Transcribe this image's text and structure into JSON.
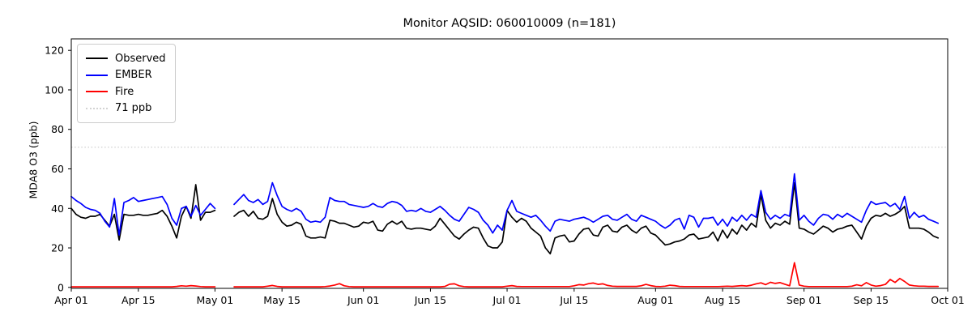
{
  "chart_data": {
    "type": "line",
    "title": "Monitor AQSID: 060010009 (n=181)",
    "xlabel": "",
    "ylabel": "MDA8 O3 (ppb)",
    "legend_position": "upper left",
    "grid": false,
    "background": "#ffffff",
    "ylim": [
      0,
      126
    ],
    "y_ticks": [
      0,
      20,
      40,
      60,
      80,
      100,
      120
    ],
    "x_domain_days": 183,
    "x_ticks": [
      {
        "day": 0,
        "label": "Apr 01"
      },
      {
        "day": 14,
        "label": "Apr 15"
      },
      {
        "day": 30,
        "label": "May 01"
      },
      {
        "day": 44,
        "label": "May 15"
      },
      {
        "day": 61,
        "label": "Jun 01"
      },
      {
        "day": 75,
        "label": "Jun 15"
      },
      {
        "day": 91,
        "label": "Jul 01"
      },
      {
        "day": 105,
        "label": "Jul 15"
      },
      {
        "day": 122,
        "label": "Aug 01"
      },
      {
        "day": 136,
        "label": "Aug 15"
      },
      {
        "day": 153,
        "label": "Sep 01"
      },
      {
        "day": 167,
        "label": "Sep 15"
      },
      {
        "day": 183,
        "label": "Oct 01"
      }
    ],
    "threshold_line": {
      "value": 71,
      "label": "71 ppb",
      "color": "#d3d3d3",
      "style": "dotted"
    },
    "data_gap_days": "May 02 - May 04 (null values)",
    "series": [
      {
        "name": "Observed",
        "color": "#000000",
        "values": [
          40,
          37,
          35.5,
          35,
          36,
          36,
          37,
          34,
          31,
          37,
          24,
          37,
          36.5,
          36.5,
          37,
          36.5,
          36.5,
          37,
          37.5,
          39,
          36,
          31,
          25,
          36,
          41,
          35,
          52,
          34,
          38,
          38,
          39,
          null,
          null,
          null,
          36,
          38,
          39,
          36,
          38.5,
          35,
          34.5,
          36,
          45,
          37,
          33,
          31,
          31.5,
          33,
          32,
          26,
          25,
          25,
          25.5,
          25,
          34,
          33.5,
          32.5,
          32.5,
          31.5,
          30.5,
          31,
          33,
          32.5,
          33.5,
          29,
          28.5,
          32,
          33.5,
          32,
          33.5,
          30,
          29.5,
          30,
          30,
          29.5,
          29,
          31,
          35,
          32,
          29,
          26,
          24.5,
          27,
          29,
          30.5,
          30,
          25,
          21,
          20,
          20,
          23,
          39,
          35.5,
          33,
          35,
          33.5,
          30,
          28,
          26,
          20,
          17,
          25,
          26,
          26.5,
          23,
          23.5,
          27,
          29.5,
          30,
          26.5,
          26,
          30.5,
          31.5,
          28.5,
          28,
          30.5,
          31.5,
          29,
          27.5,
          30,
          31,
          27.5,
          26.5,
          24,
          21.5,
          22,
          23,
          23.5,
          24.5,
          26.5,
          27,
          24.5,
          25,
          25.5,
          28,
          23.5,
          29,
          25,
          29.5,
          27,
          31.5,
          29,
          32.5,
          30.5,
          47,
          34,
          30,
          32.5,
          31.5,
          33.5,
          32,
          53,
          30,
          29.5,
          28,
          27,
          29,
          31,
          30,
          28,
          29.5,
          30,
          31,
          31.5,
          28,
          24.5,
          31,
          35,
          36.5,
          36,
          37.5,
          36,
          37,
          38.5,
          41,
          30,
          30,
          30,
          29.5,
          28,
          26,
          25
        ]
      },
      {
        "name": "EMBER",
        "color": "#0000ff",
        "values": [
          46,
          44,
          42.5,
          40.5,
          39.5,
          39,
          37.5,
          33.5,
          30.5,
          45,
          26.5,
          43,
          44,
          45.5,
          43.5,
          44,
          44.5,
          45,
          45.5,
          46,
          42,
          35,
          31.5,
          40,
          41,
          36,
          41.5,
          36.5,
          39.5,
          42.5,
          40,
          null,
          null,
          null,
          42,
          44.5,
          47,
          44,
          43,
          44.5,
          42,
          43.5,
          53,
          46.5,
          41,
          39.5,
          38.5,
          40,
          38.5,
          34.5,
          33,
          33.5,
          33,
          35.5,
          45.5,
          44,
          43.5,
          43.5,
          42,
          41.5,
          41,
          40.5,
          41,
          42.5,
          41,
          40.5,
          42.5,
          43.5,
          43,
          41.5,
          38.5,
          39,
          38.5,
          40,
          38.5,
          38,
          39.5,
          41,
          39,
          36.5,
          34.5,
          33.5,
          37,
          40.5,
          39.5,
          38,
          34,
          31.5,
          27.5,
          31.5,
          29,
          39,
          44,
          38.5,
          37.5,
          36.5,
          35.5,
          36.5,
          34,
          31,
          28.5,
          33.5,
          34.5,
          34,
          33.5,
          34.5,
          35,
          35.5,
          34.5,
          33,
          34.5,
          36,
          36.5,
          34.5,
          34,
          35.5,
          37,
          34.5,
          33.5,
          36.5,
          35.5,
          34.5,
          33.5,
          31.5,
          30,
          31.5,
          34,
          35,
          29.5,
          36.5,
          35.5,
          30.5,
          35,
          35,
          35.5,
          31.5,
          34.5,
          31,
          35.5,
          33.5,
          36.5,
          34,
          37,
          35.5,
          49,
          38,
          34.5,
          36.5,
          35,
          37,
          36,
          57.5,
          34,
          36.5,
          33.5,
          31.5,
          35,
          37,
          36.5,
          34.5,
          37,
          35.5,
          37.5,
          36,
          34.5,
          33,
          39,
          43.5,
          42,
          42.5,
          43,
          41,
          42.5,
          39.5,
          46,
          35,
          38,
          35.5,
          36.5,
          34.5,
          33.5,
          32.5
        ]
      },
      {
        "name": "Fire",
        "color": "#ff0000",
        "values": [
          0.3,
          0.3,
          0.3,
          0.3,
          0.3,
          0.3,
          0.3,
          0.3,
          0.3,
          0.3,
          0.3,
          0.3,
          0.3,
          0.3,
          0.3,
          0.3,
          0.3,
          0.3,
          0.3,
          0.3,
          0.3,
          0.3,
          0.5,
          0.8,
          0.6,
          0.9,
          0.7,
          0.4,
          0.3,
          0.3,
          0.3,
          null,
          null,
          null,
          0.3,
          0.3,
          0.3,
          0.3,
          0.3,
          0.3,
          0.3,
          0.6,
          1.0,
          0.5,
          0.3,
          0.3,
          0.3,
          0.3,
          0.3,
          0.3,
          0.3,
          0.3,
          0.3,
          0.4,
          0.7,
          1.2,
          1.9,
          0.8,
          0.4,
          0.3,
          0.3,
          0.3,
          0.3,
          0.3,
          0.3,
          0.3,
          0.3,
          0.3,
          0.3,
          0.3,
          0.3,
          0.3,
          0.3,
          0.3,
          0.3,
          0.3,
          0.3,
          0.3,
          0.5,
          1.6,
          1.8,
          0.8,
          0.4,
          0.3,
          0.3,
          0.3,
          0.3,
          0.3,
          0.3,
          0.3,
          0.3,
          0.6,
          0.9,
          0.5,
          0.4,
          0.4,
          0.4,
          0.4,
          0.4,
          0.4,
          0.4,
          0.4,
          0.4,
          0.4,
          0.4,
          0.8,
          1.4,
          1.2,
          1.9,
          2.2,
          1.5,
          1.8,
          1.0,
          0.6,
          0.5,
          0.5,
          0.5,
          0.5,
          0.5,
          0.8,
          1.5,
          0.9,
          0.5,
          0.4,
          0.6,
          1.1,
          0.9,
          0.5,
          0.4,
          0.4,
          0.4,
          0.4,
          0.4,
          0.4,
          0.4,
          0.4,
          0.5,
          0.6,
          0.5,
          0.7,
          0.9,
          0.7,
          1.1,
          1.8,
          2.3,
          1.4,
          2.6,
          2.0,
          2.4,
          1.6,
          0.8,
          12.5,
          1.2,
          0.6,
          0.4,
          0.4,
          0.4,
          0.4,
          0.4,
          0.4,
          0.4,
          0.4,
          0.4,
          0.6,
          1.3,
          0.8,
          2.4,
          1.2,
          0.6,
          0.9,
          1.5,
          4.0,
          2.5,
          4.5,
          3.0,
          1.2,
          0.8,
          0.6,
          0.6,
          0.5,
          0.5,
          0.5
        ]
      }
    ]
  }
}
